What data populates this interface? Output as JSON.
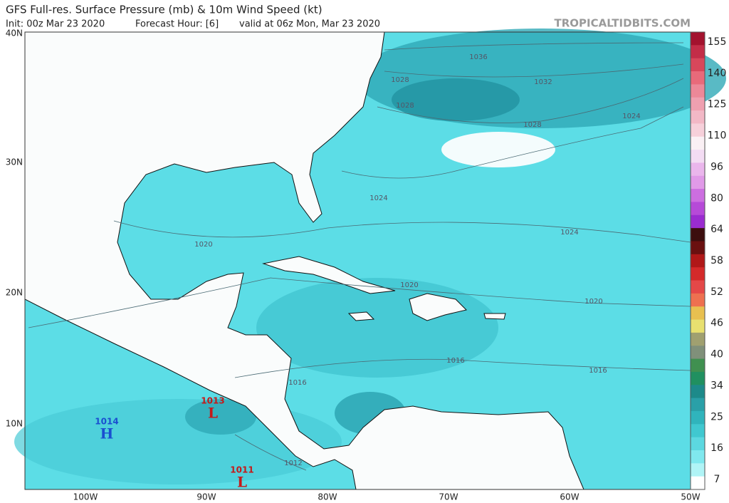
{
  "header": {
    "title": "GFS Full-res. Surface Pressure (mb) & 10m Wind Speed (kt)",
    "init": "Init: 00z Mar 23 2020",
    "forecast_hour": "Forecast Hour: [6]",
    "valid": "valid at 06z Mon, Mar 23 2020",
    "site": "TROPICALTIDBITS.COM"
  },
  "axes": {
    "lat_labels": [
      "40N",
      "30N",
      "20N",
      "10N"
    ],
    "lon_labels": [
      "100W",
      "90W",
      "80W",
      "70W",
      "60W",
      "50W"
    ]
  },
  "colorbar": {
    "labels": [
      "155",
      "140",
      "125",
      "110",
      "96",
      "80",
      "64",
      "58",
      "52",
      "46",
      "40",
      "34",
      "25",
      "16",
      "7"
    ],
    "colors": [
      "#a3122e",
      "#c32d48",
      "#d8475b",
      "#e86a7a",
      "#ec8898",
      "#efa0b0",
      "#f2b8c6",
      "#f6d0da",
      "#faf0f4",
      "#f3dcf3",
      "#eab6ec",
      "#e09ae8",
      "#cc6ee0",
      "#b64ad8",
      "#9a2cd0",
      "#3c0e0e",
      "#6a1010",
      "#b01818",
      "#d42a2a",
      "#e44848",
      "#ee7050",
      "#e8c050",
      "#e8e070",
      "#a0a070",
      "#80907a",
      "#409050",
      "#209060",
      "#1d8a8a",
      "#2aa0a8",
      "#30b4bc",
      "#40c8d0",
      "#5cd8e0",
      "#80e8ee",
      "#b0f4f6",
      "#ffffff"
    ]
  },
  "isobar_labels": [
    "1036",
    "1032",
    "1028",
    "1028",
    "1028",
    "1024",
    "1024",
    "1024",
    "1020",
    "1020",
    "1020",
    "1016",
    "1016",
    "1016",
    "1012"
  ],
  "centers": [
    {
      "pressure": "1014",
      "symbol": "H"
    },
    {
      "pressure": "1013",
      "symbol": "L"
    },
    {
      "pressure": "1011",
      "symbol": "L"
    }
  ]
}
